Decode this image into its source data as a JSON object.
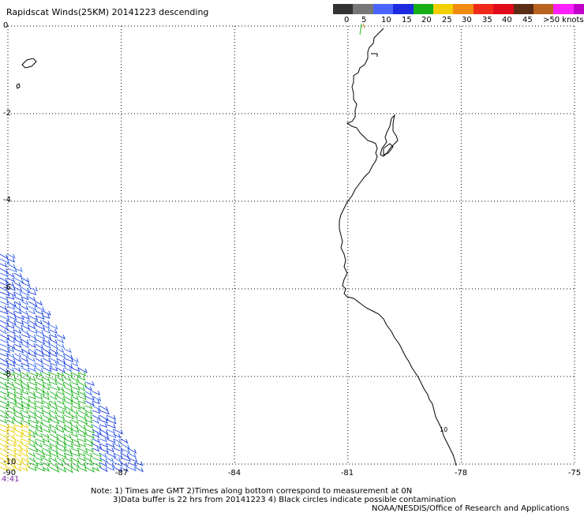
{
  "title": "Rapidscat Winds(25KM) 20141223 descending",
  "legend": {
    "colors": [
      "#333333",
      "#777777",
      "#4a64ff",
      "#1c2ae0",
      "#16b016",
      "#f2d000",
      "#f08a10",
      "#f02a18",
      "#e00a1a",
      "#5a2c14",
      "#b8641e",
      "#ff20ff",
      "#c000c8",
      "#50007a"
    ],
    "labels": [
      "0",
      "5",
      "10",
      "15",
      "20",
      "25",
      "30",
      "35",
      "40",
      "45",
      ">50 knots"
    ]
  },
  "axes": {
    "y_labels": [
      "0",
      "-2",
      "-4",
      "-6",
      "-8",
      "-10"
    ],
    "x_labels": [
      "-90",
      "-87",
      "-84",
      "-81",
      "-78",
      "-75"
    ],
    "lon_range": [
      -90,
      -75
    ],
    "lat_range": [
      -10,
      0
    ]
  },
  "time_label": "4:41",
  "coast_label": "10",
  "notes": {
    "line1": "Note: 1) Times are GMT 2)Times along bottom correspond to measurement at 0N",
    "line2": "3)Data buffer is 22 hrs from 20141223 4) Black circles indicate possible contamination",
    "credit": "NOAA/NESDIS/Office of Research and Applications"
  },
  "wind_colors": {
    "blue": "#1a3fe0",
    "blue_light": "#3a6af0",
    "green": "#1eb41e",
    "yellow": "#e8d000"
  }
}
